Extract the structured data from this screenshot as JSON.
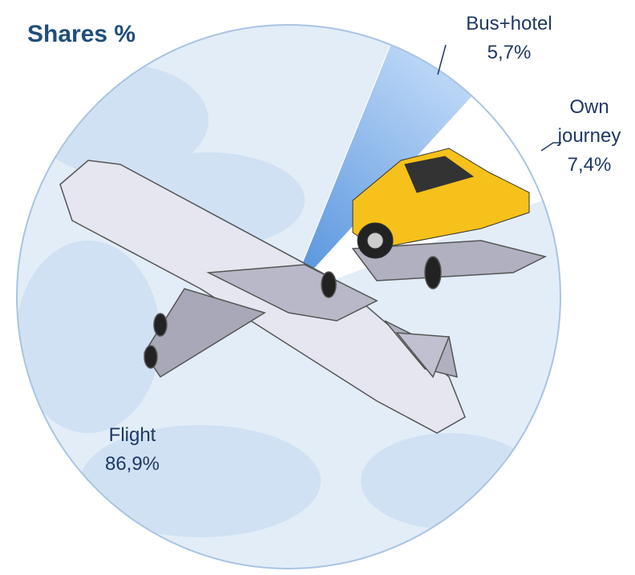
{
  "chart_data": {
    "type": "pie",
    "title": "Shares %",
    "categories": [
      "Bus+hotel",
      "Own journey",
      "Flight"
    ],
    "values": [
      5.7,
      7.4,
      86.9
    ],
    "value_labels": [
      "5,7%",
      "7,4%",
      "86,9%"
    ],
    "colors": [
      "#8fbbec",
      "#ffffff",
      "#e2edf8"
    ]
  }
}
